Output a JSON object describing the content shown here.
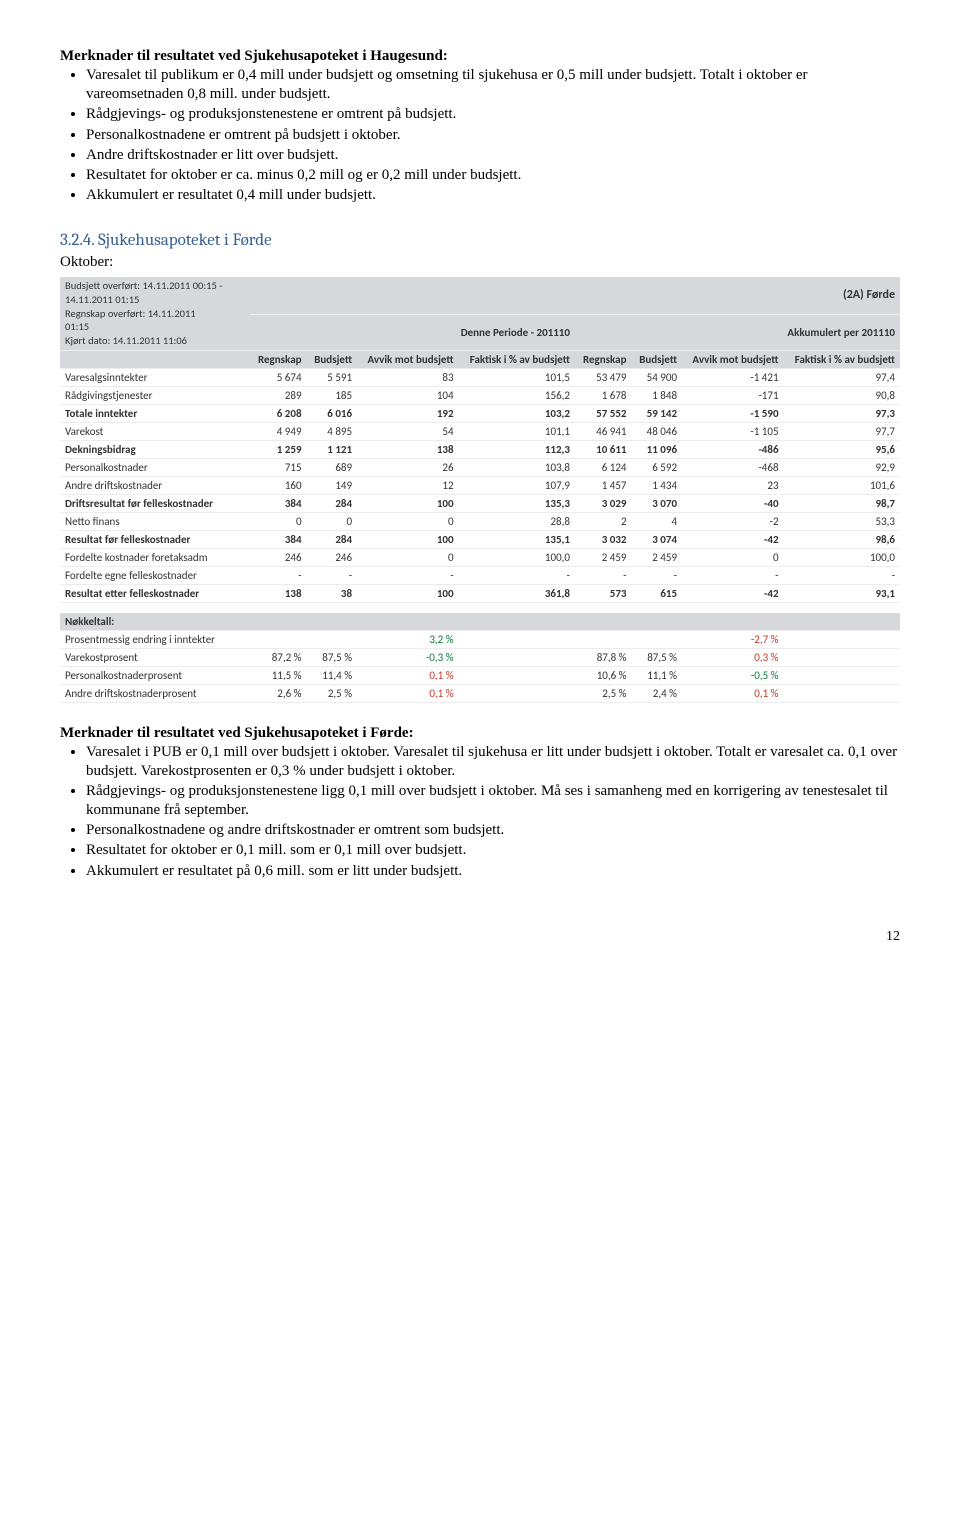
{
  "haugesund": {
    "heading": "Merknader til resultatet ved Sjukehusapoteket i Haugesund:",
    "bullets": [
      "Varesalet til publikum er 0,4 mill under budsjett og omsetning til sjukehusa er 0,5 mill under budsjett. Totalt i oktober er vareomsetnaden 0,8 mill. under budsjett.",
      "Rådgjevings- og produksjonstenestene er omtrent på budsjett.",
      "Personalkostnadene er omtrent på budsjett i oktober.",
      "Andre driftskostnader er litt over budsjett.",
      "Resultatet for oktober er ca. minus 0,2 mill og er 0,2 mill under budsjett.",
      "Akkumulert er resultatet 0,4 mill under budsjett."
    ]
  },
  "forde": {
    "subsection": "3.2.4. Sjukehusapoteket i Førde",
    "oktober": "Oktober:",
    "heading": "Merknader til resultatet ved Sjukehusapoteket i Førde:",
    "bullets": [
      "Varesalet i PUB er 0,1 mill over budsjett i oktober. Varesalet til sjukehusa er litt under budsjett i oktober. Totalt er varesalet ca. 0,1 over budsjett. Varekostprosenten er 0,3 % under budsjett i oktober.",
      "Rådgjevings- og produksjonstenestene ligg 0,1 mill over budsjett i oktober. Må ses i samanheng med en korrigering av tenestesalet til kommunane frå september.",
      "Personalkostnadene og andre driftskostnader er omtrent som budsjett.",
      "Resultatet for oktober er 0,1 mill. som er 0,1 mill over budsjett.",
      "Akkumulert er resultatet på 0,6 mill. som er litt under budsjett."
    ]
  },
  "table": {
    "meta": {
      "line1": "Budsjett overført: 14.11.2011 00:15 -",
      "line2": "14.11.2011 01:15",
      "line3": "Regnskap overført: 14.11.2011",
      "line4": "01:15",
      "line5": "Kjørt dato: 14.11.2011 11:06"
    },
    "center_title": "(2A) Førde",
    "period_title": "Denne Periode - 201110",
    "accum_title": "Akkumulert per 201110",
    "col_labels": {
      "regnskap": "Regnskap",
      "budsjett": "Budsjett",
      "avvik": "Avvik mot budsjett",
      "faktisk": "Faktisk i % av budsjett"
    },
    "rows": [
      {
        "label": "Varesalgsinntekter",
        "p": [
          "5 674",
          "5 591",
          "83",
          "101,5"
        ],
        "a": [
          "53 479",
          "54 900",
          "-1 421",
          "97,4"
        ],
        "bold": false
      },
      {
        "label": "Rådgivingstjenester",
        "p": [
          "289",
          "185",
          "104",
          "156,2"
        ],
        "a": [
          "1 678",
          "1 848",
          "-171",
          "90,8"
        ],
        "bold": false
      },
      {
        "label": "Totale inntekter",
        "p": [
          "6 208",
          "6 016",
          "192",
          "103,2"
        ],
        "a": [
          "57 552",
          "59 142",
          "-1 590",
          "97,3"
        ],
        "bold": true
      },
      {
        "label": "Varekost",
        "p": [
          "4 949",
          "4 895",
          "54",
          "101,1"
        ],
        "a": [
          "46 941",
          "48 046",
          "-1 105",
          "97,7"
        ],
        "bold": false
      },
      {
        "label": "Dekningsbidrag",
        "p": [
          "1 259",
          "1 121",
          "138",
          "112,3"
        ],
        "a": [
          "10 611",
          "11 096",
          "-486",
          "95,6"
        ],
        "bold": true
      },
      {
        "label": "Personalkostnader",
        "p": [
          "715",
          "689",
          "26",
          "103,8"
        ],
        "a": [
          "6 124",
          "6 592",
          "-468",
          "92,9"
        ],
        "bold": false
      },
      {
        "label": "Andre driftskostnader",
        "p": [
          "160",
          "149",
          "12",
          "107,9"
        ],
        "a": [
          "1 457",
          "1 434",
          "23",
          "101,6"
        ],
        "bold": false
      },
      {
        "label": "Driftsresultat før felleskostnader",
        "p": [
          "384",
          "284",
          "100",
          "135,3"
        ],
        "a": [
          "3 029",
          "3 070",
          "-40",
          "98,7"
        ],
        "bold": true
      },
      {
        "label": "Netto finans",
        "p": [
          "0",
          "0",
          "0",
          "28,8"
        ],
        "a": [
          "2",
          "4",
          "-2",
          "53,3"
        ],
        "bold": false
      },
      {
        "label": "Resultat før felleskostnader",
        "p": [
          "384",
          "284",
          "100",
          "135,1"
        ],
        "a": [
          "3 032",
          "3 074",
          "-42",
          "98,6"
        ],
        "bold": true
      },
      {
        "label": "Fordelte kostnader foretaksadm",
        "p": [
          "246",
          "246",
          "0",
          "100,0"
        ],
        "a": [
          "2 459",
          "2 459",
          "0",
          "100,0"
        ],
        "bold": false
      },
      {
        "label": "Fordelte egne felleskostnader",
        "p": [
          "-",
          "-",
          "-",
          "-"
        ],
        "a": [
          "-",
          "-",
          "-",
          "-"
        ],
        "bold": false
      },
      {
        "label": "Resultat etter felleskostnader",
        "p": [
          "138",
          "38",
          "100",
          "361,8"
        ],
        "a": [
          "573",
          "615",
          "-42",
          "93,1"
        ],
        "bold": true
      }
    ],
    "nokkel_label": "Nøkkeltall:",
    "nokkel": [
      {
        "label": "Prosentmessig endring i inntekter",
        "p": [
          "",
          "",
          "3,2 %",
          ""
        ],
        "a": [
          "",
          "",
          "-2,7 %",
          ""
        ],
        "pcolor": "pos",
        "acolor": "neg"
      },
      {
        "label": "Varekostprosent",
        "p": [
          "87,2 %",
          "87,5 %",
          "-0,3 %",
          ""
        ],
        "a": [
          "87,8 %",
          "87,5 %",
          "0,3 %",
          ""
        ],
        "pcolor": "pos",
        "acolor": "neg"
      },
      {
        "label": "Personalkostnaderprosent",
        "p": [
          "11,5 %",
          "11,4 %",
          "0,1 %",
          ""
        ],
        "a": [
          "10,6 %",
          "11,1 %",
          "-0,5 %",
          ""
        ],
        "pcolor": "neg",
        "acolor": "pos"
      },
      {
        "label": "Andre driftskostnaderprosent",
        "p": [
          "2,6 %",
          "2,5 %",
          "0,1 %",
          ""
        ],
        "a": [
          "2,5 %",
          "2,4 %",
          "0,1 %",
          ""
        ],
        "pcolor": "neg",
        "acolor": "neg"
      }
    ]
  },
  "pagenum": "12"
}
